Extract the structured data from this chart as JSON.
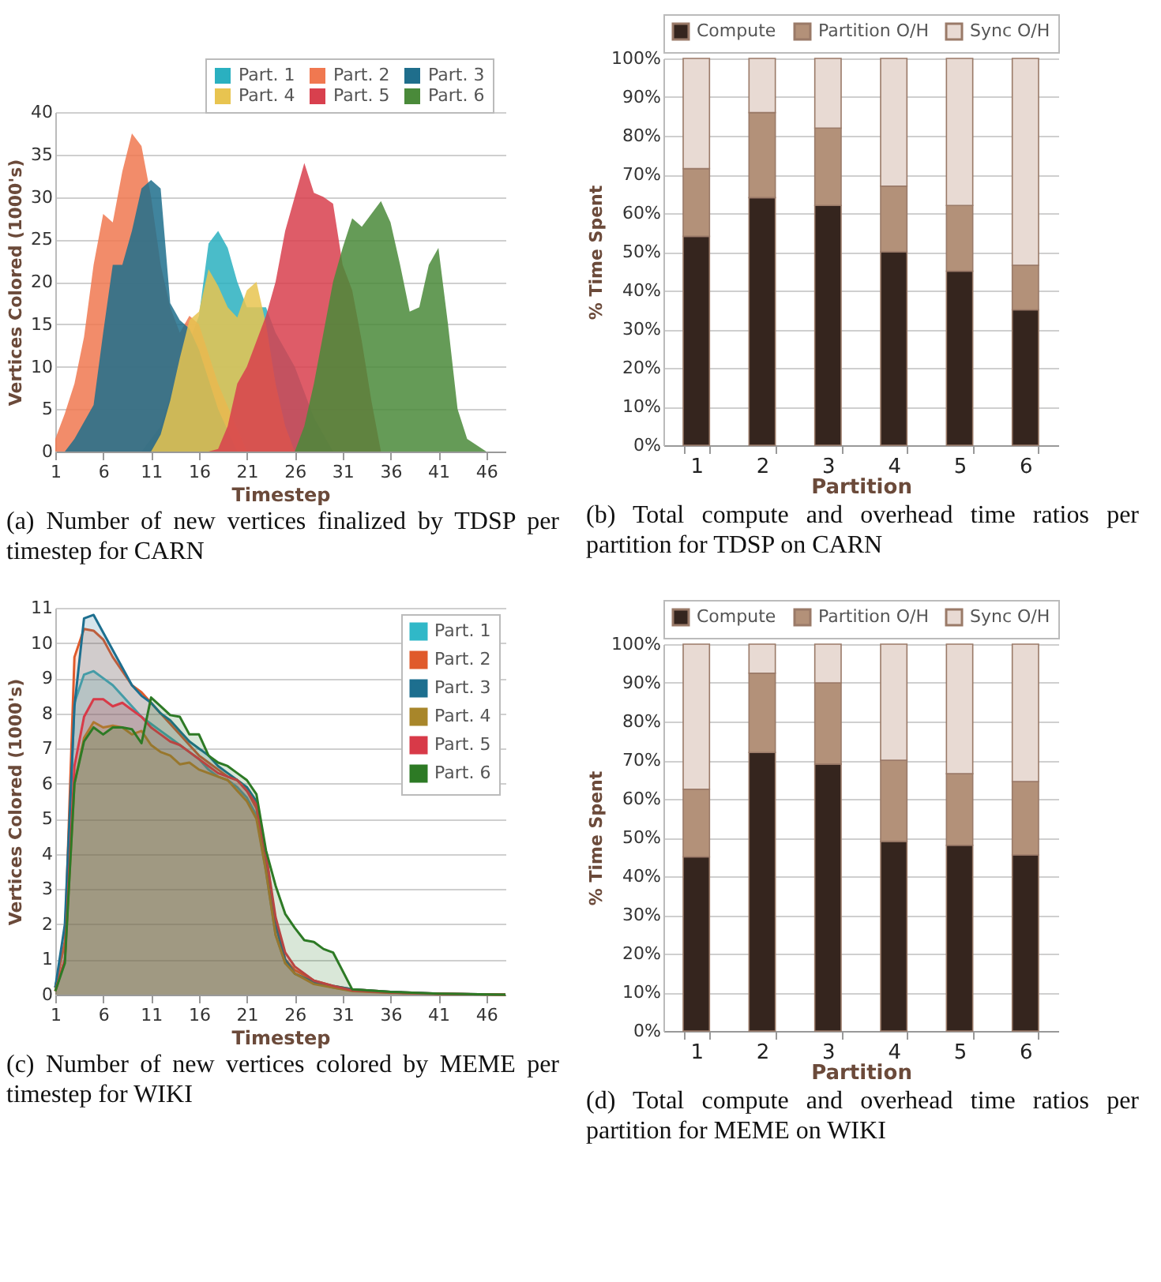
{
  "chart_data": [
    {
      "type": "area",
      "title": "(a) Number of new vertices finalized by TDSP per timestep for CARN",
      "xlabel": "Timestep",
      "ylabel": "Vertices Colored (1000's)",
      "xlim": [
        1,
        48
      ],
      "xticks": [
        1,
        6,
        11,
        16,
        21,
        26,
        31,
        36,
        41,
        46
      ],
      "ylim": [
        0,
        40
      ],
      "yticks": [
        0,
        5,
        10,
        15,
        20,
        25,
        30,
        35,
        40
      ],
      "grid": "y",
      "legend": "top right",
      "series": [
        {
          "name": "Part. 1",
          "color": "#2ab0c0",
          "x": [
            10,
            12,
            14,
            16,
            17,
            18,
            19,
            20,
            21,
            23,
            24,
            26,
            28,
            30
          ],
          "values": [
            0,
            3,
            10,
            16,
            24.5,
            26,
            24,
            20,
            17,
            17,
            14,
            10,
            4,
            0
          ]
        },
        {
          "name": "Part. 2",
          "color": "#f07850",
          "x": [
            1,
            2,
            3,
            4,
            5,
            6,
            7,
            8,
            9,
            10,
            11,
            12,
            13,
            14,
            15,
            16,
            18,
            21
          ],
          "values": [
            1.5,
            4.5,
            8,
            13.5,
            22,
            28,
            27,
            33,
            37.5,
            36,
            30,
            22,
            17,
            14,
            16,
            15,
            8,
            0
          ]
        },
        {
          "name": "Part. 3",
          "color": "#1f6e8c",
          "x": [
            2,
            3,
            4,
            5,
            6,
            7,
            8,
            9,
            10,
            11,
            12,
            13,
            14,
            15,
            16,
            18,
            20
          ],
          "values": [
            0,
            1.5,
            3.5,
            5.5,
            14,
            22,
            22,
            26,
            31,
            32,
            31,
            17.5,
            15.5,
            14.5,
            12,
            5,
            0
          ]
        },
        {
          "name": "Part. 4",
          "color": "#e8c450",
          "x": [
            11,
            12,
            13,
            14,
            15,
            16,
            17,
            18,
            19,
            20,
            21,
            22,
            23,
            24,
            25,
            26
          ],
          "values": [
            0,
            2,
            6,
            11,
            15.5,
            16.5,
            21.5,
            19.5,
            17,
            15.8,
            19,
            20,
            15,
            8,
            3,
            0
          ]
        },
        {
          "name": "Part. 5",
          "color": "#d8404e",
          "x": [
            17,
            18,
            19,
            20,
            21,
            22,
            23,
            24,
            25,
            26,
            27,
            28,
            29,
            30,
            31,
            32,
            33,
            34,
            35
          ],
          "values": [
            0,
            0.3,
            3,
            8,
            10,
            13,
            16,
            20,
            26,
            30,
            34,
            30.5,
            30,
            29.2,
            22,
            19,
            13,
            6,
            0
          ]
        },
        {
          "name": "Part. 6",
          "color": "#4a8a3a",
          "x": [
            26,
            27,
            28,
            29,
            30,
            31,
            32,
            33,
            34,
            35,
            36,
            37,
            38,
            39,
            40,
            41,
            42,
            43,
            44,
            46
          ],
          "values": [
            0,
            3,
            8,
            14,
            20,
            24,
            27.5,
            26.5,
            28,
            29.5,
            27,
            22,
            16.5,
            17,
            22,
            24,
            15,
            5,
            1.5,
            0
          ]
        }
      ]
    },
    {
      "type": "bar",
      "stacked": true,
      "title": "(b) Total compute and overhead time ratios per partition for TDSP on CARN",
      "xlabel": "Partition",
      "ylabel": "% Time Spent",
      "categories": [
        "1",
        "2",
        "3",
        "4",
        "5",
        "6"
      ],
      "ylim": [
        0,
        100
      ],
      "yticks": [
        {
          "value": 0,
          "label": "0%"
        },
        {
          "value": 10,
          "label": "10%"
        },
        {
          "value": 20,
          "label": "20%"
        },
        {
          "value": 30,
          "label": "30%"
        },
        {
          "value": 40,
          "label": "40%"
        },
        {
          "value": 50,
          "label": "50%"
        },
        {
          "value": 60,
          "label": "60%"
        },
        {
          "value": 70,
          "label": "70%"
        },
        {
          "value": 80,
          "label": "80%"
        },
        {
          "value": 90,
          "label": "90%"
        },
        {
          "value": 100,
          "label": "100%"
        }
      ],
      "grid": "y",
      "legend": "top",
      "series": [
        {
          "name": "Compute",
          "color": "#35251e",
          "values": [
            54,
            64,
            62,
            50,
            45,
            35
          ]
        },
        {
          "name": "Partition O/H",
          "color": "#b39179",
          "values": [
            17.5,
            22,
            20,
            17,
            17,
            11.5
          ]
        },
        {
          "name": "Sync O/H",
          "color": "#e8dad3",
          "values": [
            28.5,
            14,
            18,
            33,
            38,
            53.5
          ]
        }
      ]
    },
    {
      "type": "area",
      "title": "(c) Number of new vertices colored by MEME per timestep for WIKI",
      "xlabel": "Timestep",
      "ylabel": "Vertices Colored (1000's)",
      "xlim": [
        1,
        48
      ],
      "xticks": [
        1,
        6,
        11,
        16,
        21,
        26,
        31,
        36,
        41,
        46
      ],
      "ylim": [
        0,
        11
      ],
      "yticks": [
        0,
        1,
        2,
        3,
        4,
        5,
        6,
        7,
        8,
        9,
        10,
        11
      ],
      "grid": "y",
      "legend": "top right",
      "series": [
        {
          "name": "Part. 1",
          "color": "#30b8c8",
          "x": [
            1,
            2,
            3,
            4,
            5,
            6,
            7,
            8,
            9,
            10,
            11,
            12,
            13,
            14,
            15,
            16,
            17,
            18,
            19,
            20,
            21,
            22,
            23,
            24,
            25,
            26,
            28,
            30,
            32,
            36,
            41,
            48
          ],
          "values": [
            0.2,
            1.5,
            8.3,
            9.1,
            9.2,
            9.0,
            8.8,
            8.5,
            8.2,
            7.9,
            7.7,
            7.5,
            7.3,
            7.1,
            6.9,
            6.7,
            6.4,
            6.2,
            6.1,
            5.9,
            5.6,
            5.1,
            3.5,
            1.7,
            0.9,
            0.6,
            0.35,
            0.2,
            0.12,
            0.06,
            0.02,
            0
          ]
        },
        {
          "name": "Part. 2",
          "color": "#e05a2b",
          "x": [
            1,
            2,
            3,
            4,
            5,
            6,
            7,
            8,
            9,
            10,
            11,
            12,
            13,
            14,
            15,
            16,
            17,
            18,
            19,
            20,
            21,
            22,
            23,
            24,
            25,
            26,
            28,
            30,
            32,
            36,
            41,
            48
          ],
          "values": [
            0.2,
            1.5,
            9.6,
            10.4,
            10.35,
            10.1,
            9.6,
            9.2,
            8.8,
            8.6,
            8.3,
            8,
            7.7,
            7.4,
            7.1,
            6.8,
            6.6,
            6.4,
            6.2,
            6.1,
            5.8,
            5.3,
            3.8,
            2,
            1,
            0.7,
            0.4,
            0.25,
            0.15,
            0.08,
            0.03,
            0
          ]
        },
        {
          "name": "Part. 3",
          "color": "#1d6f8f",
          "x": [
            1,
            2,
            3,
            4,
            5,
            6,
            7,
            8,
            9,
            10,
            11,
            12,
            13,
            14,
            15,
            16,
            17,
            18,
            19,
            20,
            21,
            22,
            23,
            24,
            25,
            26,
            28,
            30,
            32,
            36,
            41,
            48
          ],
          "values": [
            0.2,
            2,
            8.2,
            10.7,
            10.8,
            10.3,
            9.8,
            9.3,
            8.8,
            8.5,
            8.3,
            8,
            7.8,
            7.5,
            7.2,
            7,
            6.8,
            6.5,
            6.3,
            6.1,
            5.9,
            5.5,
            4,
            2,
            1,
            0.6,
            0.35,
            0.25,
            0.15,
            0.08,
            0.03,
            0
          ]
        },
        {
          "name": "Part. 4",
          "color": "#a8862a",
          "x": [
            1,
            2,
            3,
            4,
            5,
            6,
            7,
            8,
            9,
            10,
            11,
            12,
            13,
            14,
            15,
            16,
            17,
            18,
            19,
            20,
            21,
            22,
            23,
            24,
            25,
            26,
            28,
            30,
            32,
            36,
            41,
            48
          ],
          "values": [
            0.1,
            1,
            6,
            7.3,
            7.75,
            7.6,
            7.65,
            7.6,
            7.4,
            7.5,
            7.1,
            6.9,
            6.8,
            6.55,
            6.6,
            6.4,
            6.3,
            6.2,
            6.1,
            5.8,
            5.5,
            5.0,
            3.5,
            1.7,
            0.9,
            0.6,
            0.3,
            0.2,
            0.1,
            0.05,
            0.02,
            0
          ]
        },
        {
          "name": "Part. 5",
          "color": "#d83a48",
          "x": [
            1,
            2,
            3,
            4,
            5,
            6,
            7,
            8,
            9,
            10,
            11,
            12,
            13,
            14,
            15,
            16,
            17,
            18,
            19,
            20,
            21,
            22,
            23,
            24,
            25,
            26,
            28,
            30,
            32,
            36,
            41,
            48
          ],
          "values": [
            0.1,
            1,
            6.5,
            7.9,
            8.4,
            8.4,
            8.2,
            8.3,
            8.1,
            7.9,
            7.6,
            7.4,
            7.2,
            7.1,
            6.9,
            6.7,
            6.5,
            6.3,
            6.2,
            6.1,
            5.8,
            5.4,
            4,
            2.2,
            1.2,
            0.8,
            0.4,
            0.25,
            0.12,
            0.06,
            0.02,
            0
          ]
        },
        {
          "name": "Part. 6",
          "color": "#2d7a25",
          "x": [
            1,
            2,
            3,
            4,
            5,
            6,
            7,
            8,
            9,
            10,
            11,
            12,
            13,
            14,
            15,
            16,
            17,
            18,
            19,
            20,
            21,
            22,
            23,
            24,
            25,
            26,
            27,
            28,
            29,
            30,
            32,
            36,
            41,
            48
          ],
          "values": [
            0.1,
            0.9,
            6,
            7.2,
            7.6,
            7.4,
            7.6,
            7.6,
            7.55,
            7.15,
            8.45,
            8.2,
            7.95,
            7.9,
            7.4,
            7.4,
            6.8,
            6.6,
            6.5,
            6.3,
            6.1,
            5.7,
            4.1,
            3.1,
            2.3,
            1.9,
            1.55,
            1.5,
            1.3,
            1.2,
            0.15,
            0.08,
            0.03,
            0
          ]
        }
      ]
    },
    {
      "type": "bar",
      "stacked": true,
      "title": "(d) Total compute and overhead time ratios per partition for MEME on WIKI",
      "xlabel": "Partition",
      "ylabel": "% Time Spent",
      "categories": [
        "1",
        "2",
        "3",
        "4",
        "5",
        "6"
      ],
      "ylim": [
        0,
        100
      ],
      "yticks": [
        {
          "value": 0,
          "label": "0%"
        },
        {
          "value": 10,
          "label": "10%"
        },
        {
          "value": 20,
          "label": "20%"
        },
        {
          "value": 30,
          "label": "30%"
        },
        {
          "value": 40,
          "label": "40%"
        },
        {
          "value": 50,
          "label": "50%"
        },
        {
          "value": 60,
          "label": "60%"
        },
        {
          "value": 70,
          "label": "70%"
        },
        {
          "value": 80,
          "label": "80%"
        },
        {
          "value": 90,
          "label": "90%"
        },
        {
          "value": 100,
          "label": "100%"
        }
      ],
      "grid": "y",
      "legend": "top",
      "series": [
        {
          "name": "Compute",
          "color": "#35251e",
          "values": [
            45,
            72,
            69,
            49,
            48,
            45.5
          ]
        },
        {
          "name": "Partition O/H",
          "color": "#b39179",
          "values": [
            17.5,
            20.5,
            21,
            21,
            18.5,
            19
          ]
        },
        {
          "name": "Sync O/H",
          "color": "#e8dad3",
          "values": [
            37.5,
            7.5,
            10,
            30,
            33.5,
            35.5
          ]
        }
      ]
    }
  ]
}
